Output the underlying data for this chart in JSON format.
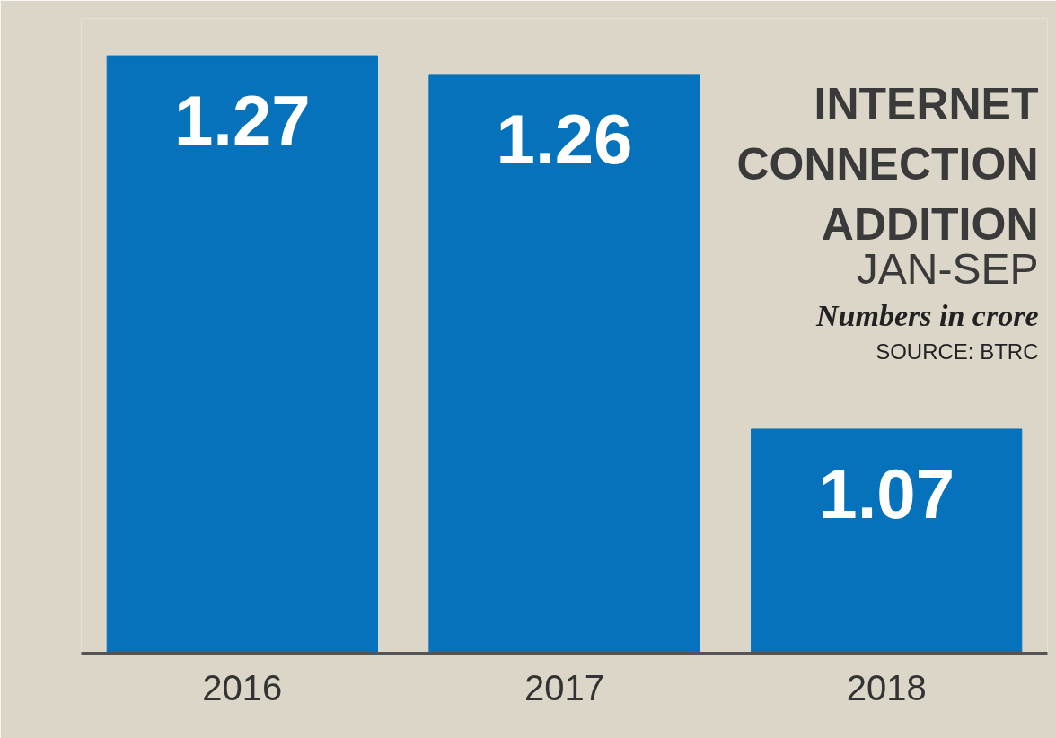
{
  "chart_data": {
    "type": "bar",
    "title": "INTERNET CONNECTION ADDITION",
    "subtitle": "JAN-SEP",
    "annotations": [
      "Numbers in crore",
      "SOURCE: BTRC"
    ],
    "categories": [
      "2016",
      "2017",
      "2018"
    ],
    "values": [
      1.27,
      1.26,
      1.07
    ],
    "color": "#0572bb",
    "ylim": [
      0.95,
      1.29
    ],
    "tick_labels": "x",
    "data_labels": true,
    "grid": false
  }
}
